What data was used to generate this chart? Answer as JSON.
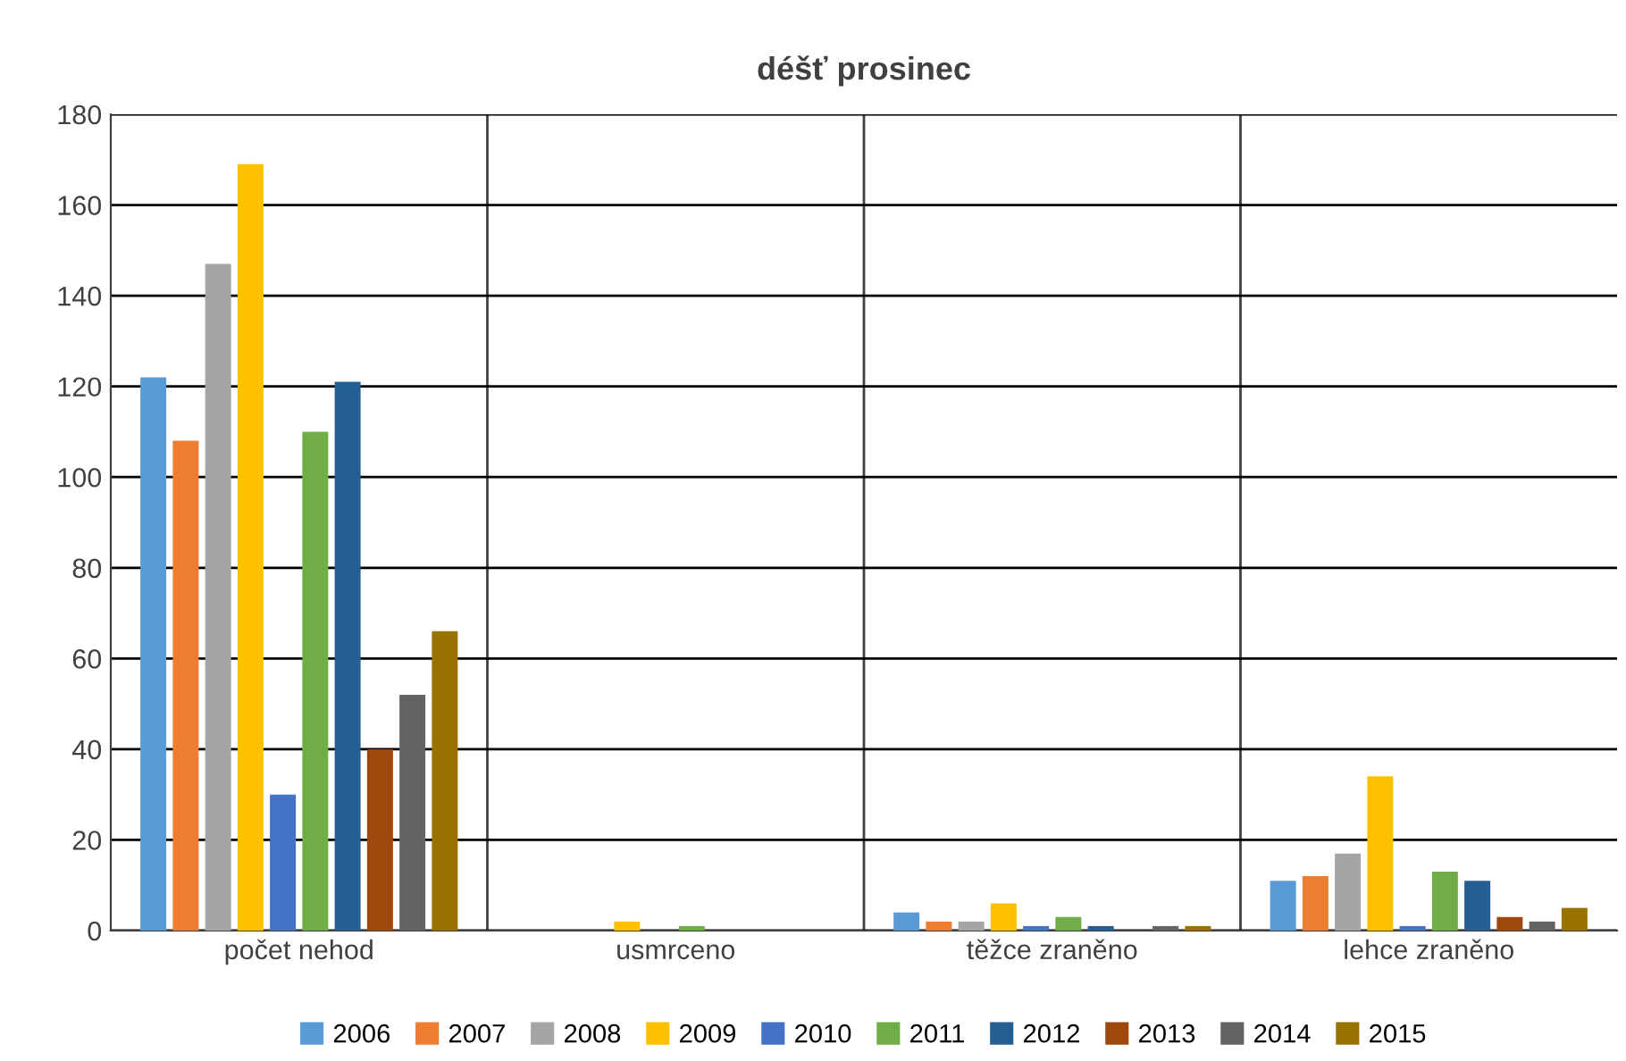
{
  "chart_data": {
    "type": "bar",
    "title": "déšť prosinec",
    "categories": [
      "počet nehod",
      "usmrceno",
      "těžce zraněno",
      "lehce zraněno"
    ],
    "series": [
      {
        "name": "2006",
        "color": "#5b9bd5",
        "values": [
          122,
          0,
          4,
          11
        ]
      },
      {
        "name": "2007",
        "color": "#ed7d31",
        "values": [
          108,
          0,
          2,
          12
        ]
      },
      {
        "name": "2008",
        "color": "#a5a5a5",
        "values": [
          147,
          0,
          2,
          17
        ]
      },
      {
        "name": "2009",
        "color": "#ffc000",
        "values": [
          169,
          2,
          6,
          34
        ]
      },
      {
        "name": "2010",
        "color": "#4472c4",
        "values": [
          30,
          0,
          1,
          1
        ]
      },
      {
        "name": "2011",
        "color": "#70ad47",
        "values": [
          110,
          1,
          3,
          13
        ]
      },
      {
        "name": "2012",
        "color": "#255e91",
        "values": [
          121,
          0,
          1,
          11
        ]
      },
      {
        "name": "2013",
        "color": "#9e480e",
        "values": [
          40,
          0,
          0,
          3
        ]
      },
      {
        "name": "2014",
        "color": "#636363",
        "values": [
          52,
          0,
          1,
          2
        ]
      },
      {
        "name": "2015",
        "color": "#997300",
        "values": [
          66,
          0,
          1,
          5
        ]
      }
    ],
    "ylim": [
      0,
      180
    ],
    "yticks": [
      0,
      20,
      40,
      60,
      80,
      100,
      120,
      140,
      160,
      180
    ],
    "grid": true,
    "legend": "bottom"
  }
}
